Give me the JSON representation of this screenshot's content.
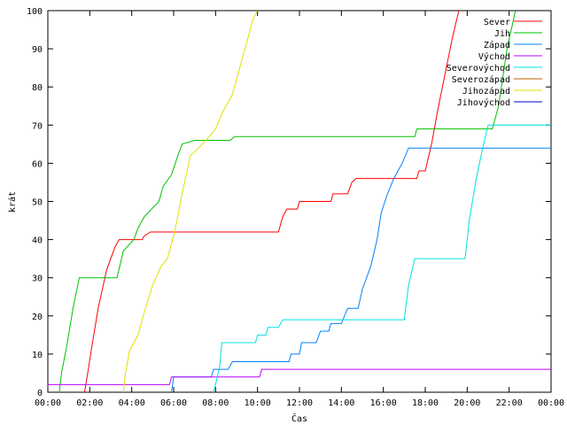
{
  "chart_data": {
    "type": "line",
    "xlabel": "Čas",
    "ylabel": "krát",
    "xlim": [
      0,
      24
    ],
    "ylim": [
      0,
      100
    ],
    "x_ticks": [
      "00:00",
      "02:00",
      "04:00",
      "06:00",
      "08:00",
      "10:00",
      "12:00",
      "14:00",
      "16:00",
      "18:00",
      "20:00",
      "22:00",
      "00:00"
    ],
    "y_ticks": [
      "0",
      "10",
      "20",
      "30",
      "40",
      "50",
      "60",
      "70",
      "80",
      "90",
      "100"
    ],
    "legend_position": "top-right",
    "series": [
      {
        "name": "Sever",
        "color": "#ff0000",
        "points": [
          [
            1.75,
            0
          ],
          [
            1.9,
            5
          ],
          [
            2.1,
            12
          ],
          [
            2.4,
            22
          ],
          [
            2.8,
            32
          ],
          [
            3.2,
            38
          ],
          [
            3.4,
            40
          ],
          [
            4.5,
            40
          ],
          [
            4.6,
            41
          ],
          [
            4.9,
            42
          ],
          [
            11.0,
            42
          ],
          [
            11.2,
            46
          ],
          [
            11.4,
            48
          ],
          [
            11.9,
            48
          ],
          [
            12.0,
            50
          ],
          [
            13.5,
            50
          ],
          [
            13.6,
            52
          ],
          [
            14.3,
            52
          ],
          [
            14.5,
            55
          ],
          [
            14.7,
            56
          ],
          [
            17.6,
            56
          ],
          [
            17.7,
            58
          ],
          [
            18.0,
            58
          ],
          [
            18.3,
            65
          ],
          [
            18.6,
            74
          ],
          [
            19.0,
            85
          ],
          [
            19.3,
            93
          ],
          [
            19.6,
            100
          ]
        ]
      },
      {
        "name": "Jih",
        "color": "#00c000",
        "points": [
          [
            0.55,
            0
          ],
          [
            0.65,
            5
          ],
          [
            0.9,
            12
          ],
          [
            1.2,
            22
          ],
          [
            1.5,
            30
          ],
          [
            3.3,
            30
          ],
          [
            3.6,
            37
          ],
          [
            4.1,
            40
          ],
          [
            4.3,
            43
          ],
          [
            4.6,
            46
          ],
          [
            5.3,
            50
          ],
          [
            5.5,
            54
          ],
          [
            5.9,
            57
          ],
          [
            6.2,
            62
          ],
          [
            6.4,
            65
          ],
          [
            7.0,
            66
          ],
          [
            8.7,
            66
          ],
          [
            8.9,
            67
          ],
          [
            17.5,
            67
          ],
          [
            17.6,
            69
          ],
          [
            21.2,
            69
          ],
          [
            21.5,
            75
          ],
          [
            21.9,
            90
          ],
          [
            22.3,
            100
          ]
        ]
      },
      {
        "name": "Západ",
        "color": "#0080ff",
        "points": [
          [
            5.9,
            0
          ],
          [
            6.0,
            4
          ],
          [
            7.8,
            4
          ],
          [
            7.9,
            6
          ],
          [
            8.6,
            6
          ],
          [
            8.8,
            8
          ],
          [
            11.5,
            8
          ],
          [
            11.6,
            10
          ],
          [
            12.0,
            10
          ],
          [
            12.1,
            13
          ],
          [
            12.8,
            13
          ],
          [
            13.0,
            16
          ],
          [
            13.4,
            16
          ],
          [
            13.5,
            18
          ],
          [
            14.0,
            18
          ],
          [
            14.3,
            22
          ],
          [
            14.8,
            22
          ],
          [
            15.0,
            27
          ],
          [
            15.4,
            33
          ],
          [
            15.7,
            40
          ],
          [
            15.9,
            47
          ],
          [
            16.2,
            52
          ],
          [
            16.5,
            56
          ],
          [
            16.9,
            60
          ],
          [
            17.2,
            64
          ],
          [
            24,
            64
          ]
        ]
      },
      {
        "name": "Východ",
        "color": "#c000ff",
        "points": [
          [
            0,
            2
          ],
          [
            5.8,
            2
          ],
          [
            5.9,
            4
          ],
          [
            10.1,
            4
          ],
          [
            10.2,
            6
          ],
          [
            24,
            6
          ]
        ]
      },
      {
        "name": "Severovýchod",
        "color": "#00e0e0",
        "points": [
          [
            7.9,
            0
          ],
          [
            8.0,
            2
          ],
          [
            8.2,
            7
          ],
          [
            8.3,
            13
          ],
          [
            9.9,
            13
          ],
          [
            10.0,
            15
          ],
          [
            10.4,
            15
          ],
          [
            10.5,
            17
          ],
          [
            11.0,
            17
          ],
          [
            11.2,
            19
          ],
          [
            17.0,
            19
          ],
          [
            17.2,
            28
          ],
          [
            17.5,
            35
          ],
          [
            19.9,
            35
          ],
          [
            20.1,
            45
          ],
          [
            20.4,
            55
          ],
          [
            20.7,
            63
          ],
          [
            21.0,
            70
          ],
          [
            24,
            70
          ]
        ]
      },
      {
        "name": "Severozápad",
        "color": "#c06000",
        "points": []
      },
      {
        "name": "Jihozápad",
        "color": "#e0e000",
        "points": [
          [
            3.6,
            0
          ],
          [
            3.7,
            5
          ],
          [
            3.9,
            11
          ],
          [
            4.3,
            15
          ],
          [
            4.6,
            21
          ],
          [
            5.0,
            28
          ],
          [
            5.4,
            33
          ],
          [
            5.7,
            35
          ],
          [
            6.0,
            41
          ],
          [
            6.2,
            46
          ],
          [
            6.4,
            52
          ],
          [
            6.6,
            57
          ],
          [
            6.8,
            62
          ],
          [
            7.2,
            64
          ],
          [
            7.7,
            67
          ],
          [
            8.0,
            69
          ],
          [
            8.3,
            73
          ],
          [
            8.8,
            78
          ],
          [
            9.4,
            90
          ],
          [
            9.8,
            98
          ],
          [
            10.0,
            100
          ]
        ]
      },
      {
        "name": "Jihovýchod",
        "color": "#0000c0",
        "points": []
      }
    ]
  }
}
